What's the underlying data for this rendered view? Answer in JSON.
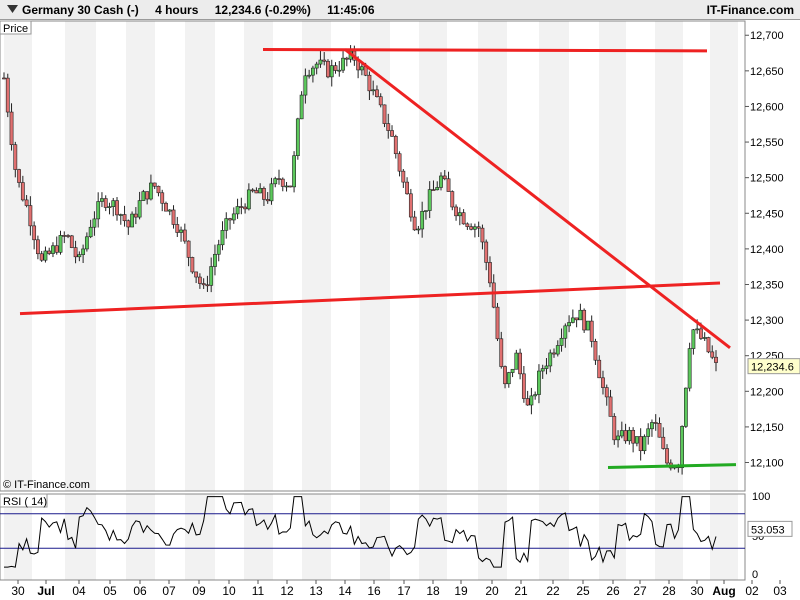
{
  "header": {
    "instrument": "Germany 30 Cash (-)",
    "timeframe": "4 hours",
    "quote": "12,234.6 (-0.29%)",
    "time": "11:45:06",
    "brand": "IT-Finance.com"
  },
  "price_panel": {
    "label": "Price",
    "watermark": "© IT-Finance.com",
    "last_price": "12,234.6"
  },
  "rsi_panel": {
    "label": "RSI ( 14)",
    "value": "53.053",
    "levels": [
      "100",
      "50",
      "0"
    ]
  },
  "colors": {
    "up": "#5cc85c",
    "down": "#e07070",
    "trendline": "#ee2222",
    "support": "#22aa22",
    "rsi_line": "#000000",
    "rsi_band": "#1a1a8c"
  },
  "chart_data": {
    "type": "candlestick",
    "title": "Germany 30 Cash (-)",
    "timeframe": "4 hours",
    "y_ticks": [
      12100,
      12150,
      12200,
      12250,
      12300,
      12350,
      12400,
      12450,
      12500,
      12550,
      12600,
      12650,
      12700
    ],
    "y_tick_labels": [
      "12,100",
      "12,150",
      "12,200",
      "12,250",
      "12,300",
      "12,350",
      "12,400",
      "12,450",
      "12,500",
      "12,550",
      "12,600",
      "12,650",
      "12,700"
    ],
    "ylim": [
      12060,
      12720
    ],
    "x_tick_labels": [
      "30",
      "Jul",
      "04",
      "05",
      "06",
      "07",
      "09",
      "10",
      "11",
      "12",
      "13",
      "14",
      "16",
      "17",
      "18",
      "19",
      "20",
      "21",
      "22",
      "25",
      "26",
      "27",
      "28",
      "30",
      "Aug",
      "02",
      "03"
    ],
    "last_price": 12234.6,
    "change_pct": -0.29,
    "series_close_path": [
      12640,
      12500,
      12450,
      12380,
      12400,
      12420,
      12380,
      12440,
      12470,
      12460,
      12430,
      12470,
      12490,
      12460,
      12430,
      12380,
      12340,
      12400,
      12440,
      12460,
      12480,
      12470,
      12500,
      12490,
      12650,
      12660,
      12650,
      12660,
      12670,
      12640,
      12600,
      12560,
      12490,
      12430,
      12470,
      12500,
      12460,
      12440,
      12430,
      12350,
      12200,
      12250,
      12170,
      12230,
      12260,
      12300,
      12310,
      12280,
      12200,
      12130,
      12140,
      12120,
      12160,
      12100,
      12100,
      12290,
      12270,
      12234
    ],
    "trendlines": [
      {
        "name": "resistance-top",
        "points": [
          [
            0,
            12680
          ],
          [
            1,
            12678
          ]
        ]
      },
      {
        "name": "descending",
        "points": [
          [
            0,
            12680
          ],
          [
            1,
            12260
          ]
        ]
      },
      {
        "name": "rising-support",
        "points": [
          [
            0,
            12310
          ],
          [
            1,
            12350
          ]
        ]
      },
      {
        "name": "bottom-support",
        "points": [
          [
            0,
            12093
          ],
          [
            1,
            12097
          ]
        ]
      }
    ],
    "rsi": {
      "period": 14,
      "last": 53.053,
      "bands": [
        70,
        30
      ]
    }
  }
}
